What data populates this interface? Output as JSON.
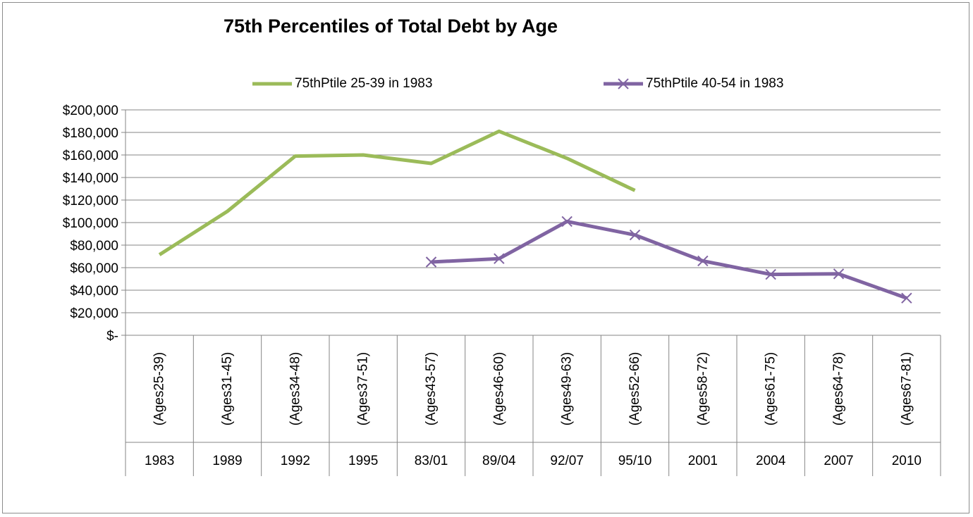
{
  "chart_data": {
    "type": "line",
    "title": "75th Percentiles of Total Debt by Age",
    "categories_top": [
      "(Ages25-39)",
      "(Ages31-45)",
      "(Ages34-48)",
      "(Ages37-51)",
      "(Ages43-57)",
      "(Ages46-60)",
      "(Ages49-63)",
      "(Ages52-66)",
      "(Ages58-72)",
      "(Ages61-75)",
      "(Ages64-78)",
      "(Ages67-81)"
    ],
    "categories_bottom": [
      "1983",
      "1989",
      "1992",
      "1995",
      "83/01",
      "89/04",
      "92/07",
      "95/10",
      "2001",
      "2004",
      "2007",
      "2010"
    ],
    "ylim": [
      0,
      200000
    ],
    "yticks": [
      0,
      20000,
      40000,
      60000,
      80000,
      100000,
      120000,
      140000,
      160000,
      180000,
      200000
    ],
    "ytick_labels": [
      "$-",
      "$20,000",
      "$40,000",
      "$60,000",
      "$80,000",
      "$100,000",
      "$120,000",
      "$140,000",
      "$160,000",
      "$180,000",
      "$200,000"
    ],
    "grid": true,
    "legend_position": "top",
    "series": [
      {
        "name": "75thPtile 25-39 in 1983",
        "color": "#9bbb59",
        "marker": "none",
        "values": [
          71500,
          110000,
          159000,
          160000,
          152500,
          181000,
          157000,
          128500,
          null,
          null,
          null,
          null
        ]
      },
      {
        "name": "75thPtile 40-54 in 1983",
        "color": "#8064a2",
        "marker": "x",
        "values": [
          null,
          null,
          null,
          null,
          65000,
          68000,
          101000,
          89000,
          66000,
          54000,
          54500,
          33000
        ]
      }
    ]
  }
}
